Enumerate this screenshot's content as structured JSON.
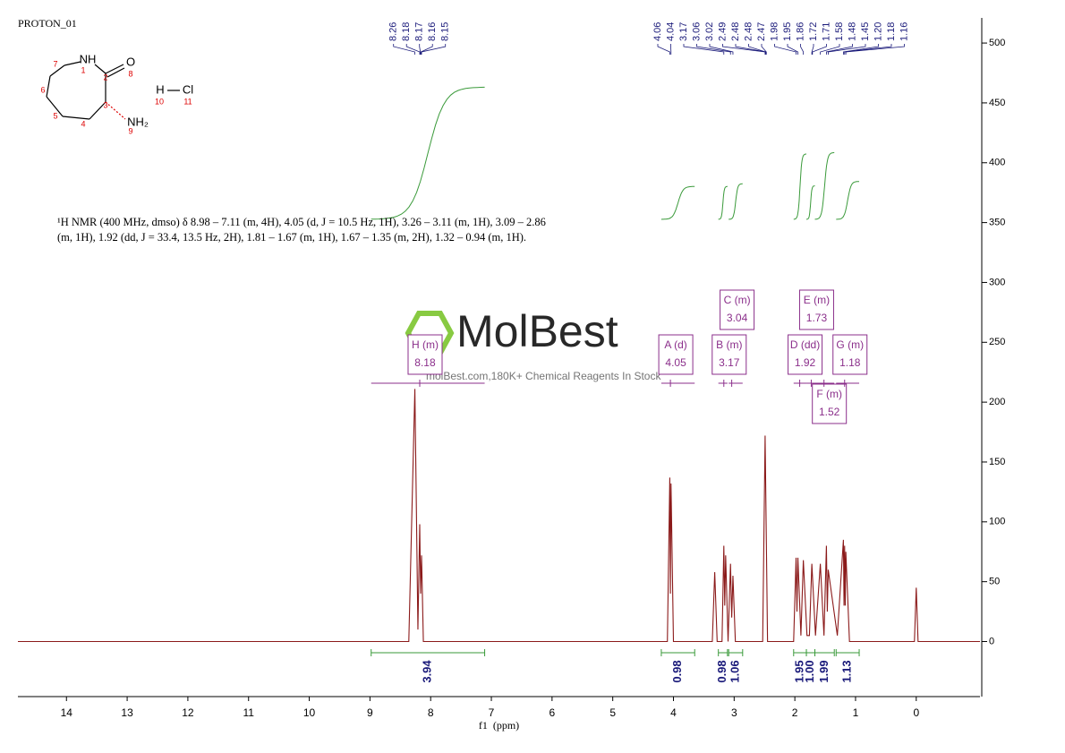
{
  "chart_data": {
    "type": "line",
    "title": "PROTON_01",
    "x_label": "f1  (ppm)",
    "color": "#8b1a1a",
    "x": [
      14.8,
      8.36,
      8.26,
      8.21,
      8.18,
      8.165,
      8.15,
      8.12,
      4.1,
      4.06,
      4.05,
      4.04,
      4.0,
      3.36,
      3.32,
      3.28,
      3.2,
      3.17,
      3.155,
      3.14,
      3.1,
      3.06,
      3.04,
      3.02,
      2.98,
      2.53,
      2.49,
      2.45,
      2.02,
      1.98,
      1.965,
      1.95,
      1.9,
      1.86,
      1.8,
      1.76,
      1.72,
      1.71,
      1.66,
      1.58,
      1.52,
      1.48,
      1.465,
      1.45,
      1.3,
      1.2,
      1.19,
      1.18,
      1.17,
      1.16,
      1.1,
      0.03,
      0,
      -0.03,
      -1.05
    ],
    "values": [
      0,
      0,
      211,
      10,
      98,
      40,
      72,
      0,
      0,
      137,
      40,
      132,
      0,
      0,
      58,
      0,
      0,
      80,
      30,
      72,
      0,
      65,
      20,
      55,
      0,
      0,
      172,
      0,
      0,
      70,
      25,
      70,
      5,
      68,
      5,
      5,
      65,
      55,
      5,
      65,
      5,
      80,
      25,
      60,
      5,
      85,
      30,
      80,
      30,
      75,
      0,
      0,
      45,
      0,
      0
    ],
    "xlim": [
      14.8,
      -1.05
    ],
    "ylim": [
      -46,
      521
    ],
    "xticks": [
      14,
      13,
      12,
      11,
      10,
      9,
      8,
      7,
      6,
      5,
      4,
      3,
      2,
      1,
      0
    ],
    "yticks": [
      0,
      50,
      100,
      150,
      200,
      250,
      300,
      350,
      400,
      450,
      500
    ],
    "peak_labels": [
      8.26,
      8.18,
      8.17,
      8.16,
      8.15,
      4.06,
      4.04,
      3.17,
      3.06,
      3.02,
      2.49,
      2.48,
      2.48,
      2.47,
      1.98,
      1.95,
      1.86,
      1.72,
      1.71,
      1.58,
      1.48,
      1.45,
      {
        "value": 1.2,
        "label": "1.20"
      },
      1.18,
      1.16
    ],
    "integrals": [
      {
        "range": [
          8.98,
          7.11
        ],
        "value": 3.94
      },
      {
        "range": [
          4.2,
          3.65
        ],
        "value": 0.98
      },
      {
        "range": [
          3.26,
          3.11
        ],
        "value": 0.98
      },
      {
        "range": [
          3.09,
          2.86
        ],
        "value": 1.06
      },
      {
        "range": [
          2.02,
          1.81
        ],
        "value": 1.95
      },
      {
        "range": [
          1.81,
          1.67
        ],
        "value": 1,
        "label": "1.00"
      },
      {
        "range": [
          1.67,
          1.35
        ],
        "value": 1.99
      },
      {
        "range": [
          1.32,
          0.94
        ],
        "value": 1.13
      }
    ],
    "multiplets": [
      {
        "label": "H (m)",
        "shift": 8.18
      },
      {
        "label": "A (d)",
        "shift": 4.05
      },
      {
        "label": "B (m)",
        "shift": 3.17
      },
      {
        "label": "C (m)",
        "shift": 3.04
      },
      {
        "label": "D (dd)",
        "shift": 1.92
      },
      {
        "label": "E (m)",
        "shift": 1.73
      },
      {
        "label": "F (m)",
        "shift": 1.52
      },
      {
        "label": "G (m)",
        "shift": 1.18
      }
    ],
    "annotation": "¹H NMR (400 MHz, dmso) δ 8.98 – 7.11 (m, 4H), 4.05 (d, J = 10.5 Hz, 1H), 3.26 – 3.11 (m, 1H), 3.09 – 2.86 (m, 1H), 1.92 (dd, J = 33.4, 13.5 Hz, 2H), 1.81 – 1.67 (m, 1H), 1.67 – 1.35 (m, 2H), 1.32 – 0.94 (m, 1H).",
    "watermark": {
      "logo": "MolBest",
      "text": "molBest.com,180K+ Chemical Reagents In Stock"
    }
  },
  "structure": {
    "atoms": [
      {
        "label": "NH",
        "number": 1
      },
      {
        "number": 2
      },
      {
        "label": "O",
        "number": 8
      },
      {
        "number": 3
      },
      {
        "label": "NH₂",
        "number": 9
      },
      {
        "number": 4
      },
      {
        "number": 5
      },
      {
        "number": 6
      },
      {
        "number": 7
      },
      {
        "label": "H",
        "number": 10
      },
      {
        "label": "Cl",
        "number": 11
      }
    ]
  }
}
